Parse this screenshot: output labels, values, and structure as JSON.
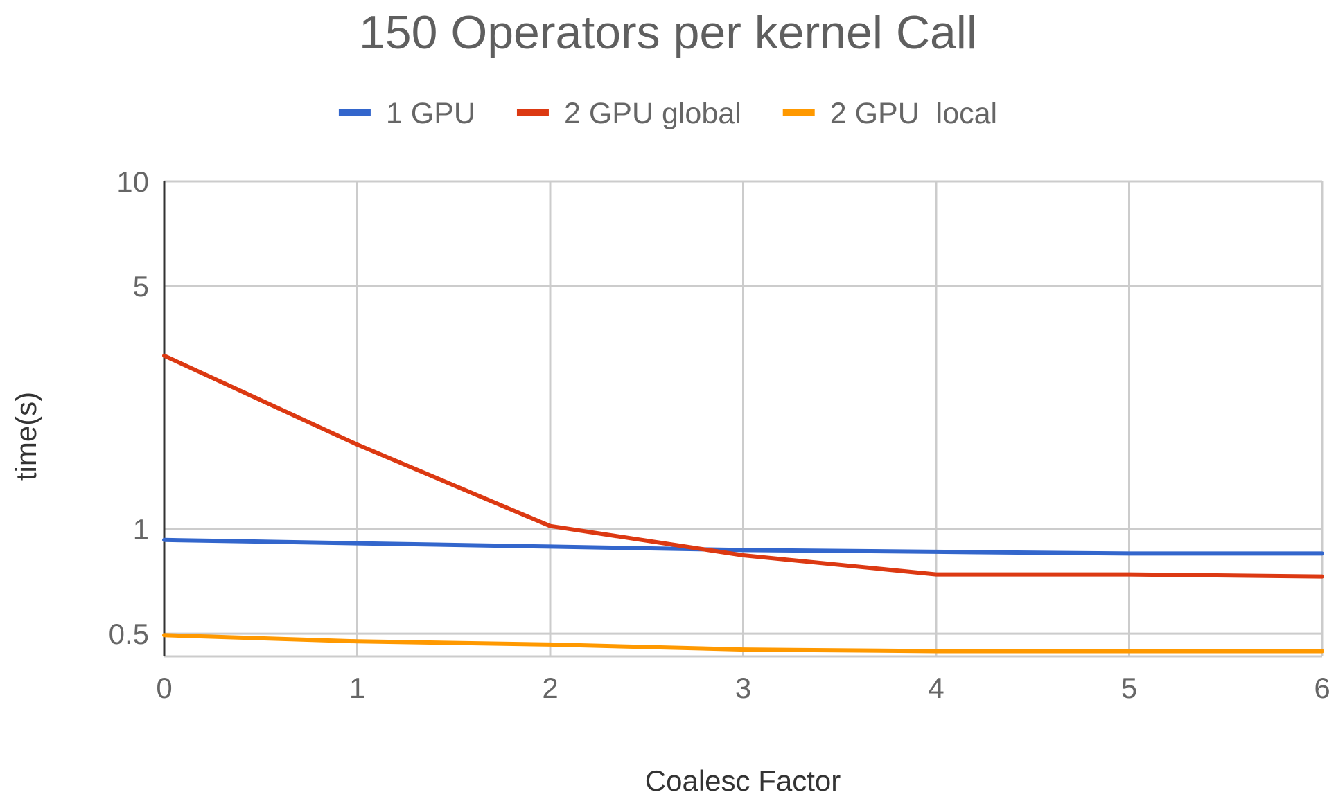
{
  "chart_data": {
    "type": "line",
    "title": "150 Operators per kernel Call",
    "xlabel": "Coalesc Factor",
    "ylabel": "time(s)",
    "yscale": "log",
    "ylim": [
      0.43,
      10
    ],
    "xlim": [
      0,
      6
    ],
    "x": [
      0,
      1,
      2,
      3,
      4,
      5,
      6
    ],
    "xticks": [
      "0",
      "1",
      "2",
      "3",
      "4",
      "5",
      "6"
    ],
    "yticks": [
      {
        "value": 10,
        "label": "10"
      },
      {
        "value": 5,
        "label": "5"
      },
      {
        "value": 1,
        "label": "1"
      },
      {
        "value": 0.5,
        "label": "0.5"
      }
    ],
    "grid": true,
    "legend_position": "top",
    "series": [
      {
        "name": "1 GPU",
        "color": "#3366cc",
        "values": [
          0.93,
          0.91,
          0.89,
          0.87,
          0.86,
          0.85,
          0.85
        ]
      },
      {
        "name": "2 GPU global",
        "color": "#dc3912",
        "values": [
          3.15,
          1.75,
          1.02,
          0.84,
          0.74,
          0.74,
          0.73
        ]
      },
      {
        "name": "2 GPU  local",
        "color": "#ff9900",
        "values": [
          0.495,
          0.475,
          0.465,
          0.45,
          0.445,
          0.445,
          0.445
        ]
      }
    ]
  }
}
